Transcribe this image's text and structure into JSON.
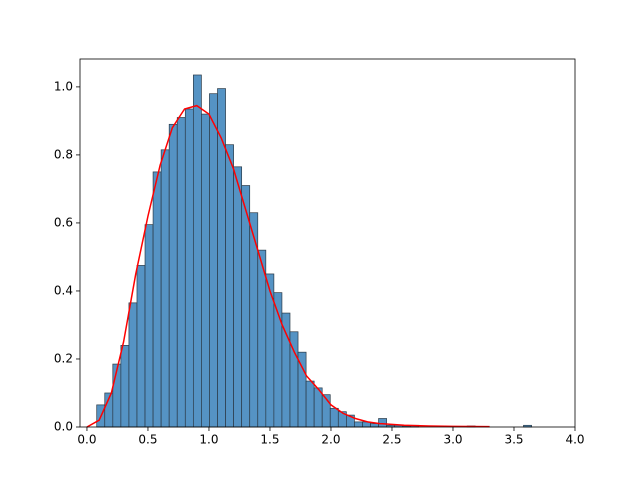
{
  "chart_data": {
    "type": "histogram",
    "bins": [
      0.08,
      0.146,
      0.212,
      0.278,
      0.344,
      0.41,
      0.476,
      0.542,
      0.608,
      0.674,
      0.74,
      0.806,
      0.872,
      0.938,
      1.004,
      1.07,
      1.136,
      1.202,
      1.268,
      1.334,
      1.4,
      1.466,
      1.532,
      1.598,
      1.664,
      1.73,
      1.796,
      1.862,
      1.928,
      1.994,
      2.06,
      2.126,
      2.192,
      2.258,
      2.324,
      2.39,
      2.456,
      2.522,
      2.588,
      2.654,
      2.72,
      2.786,
      2.852,
      2.918,
      2.984,
      3.05,
      3.116,
      3.182,
      3.248,
      3.314,
      3.38,
      3.446,
      3.512,
      3.578,
      3.644
    ],
    "values": [
      0.065,
      0.1,
      0.185,
      0.24,
      0.365,
      0.475,
      0.595,
      0.75,
      0.815,
      0.89,
      0.91,
      0.935,
      1.035,
      0.92,
      0.98,
      0.995,
      0.83,
      0.765,
      0.71,
      0.63,
      0.52,
      0.45,
      0.395,
      0.335,
      0.28,
      0.22,
      0.135,
      0.115,
      0.095,
      0.055,
      0.045,
      0.035,
      0.015,
      0.015,
      0.01,
      0.025,
      0.005,
      0.005,
      0.003,
      0.005,
      0,
      0,
      0,
      0,
      0,
      0,
      0.003,
      0,
      0,
      0,
      0,
      0,
      0,
      0.005
    ],
    "color": "#5593c4",
    "edgecolor": "#2b3a47",
    "kde": {
      "color": "#ff0000",
      "x": [
        0,
        0.1,
        0.2,
        0.3,
        0.4,
        0.5,
        0.6,
        0.7,
        0.8,
        0.9,
        1.0,
        1.1,
        1.2,
        1.3,
        1.4,
        1.5,
        1.6,
        1.7,
        1.8,
        1.9,
        2.0,
        2.1,
        2.2,
        2.3,
        2.4,
        2.6,
        2.8,
        3.0,
        3.3
      ],
      "values": [
        0,
        0.02,
        0.1,
        0.25,
        0.45,
        0.62,
        0.77,
        0.88,
        0.935,
        0.945,
        0.92,
        0.85,
        0.76,
        0.64,
        0.52,
        0.4,
        0.3,
        0.22,
        0.15,
        0.11,
        0.065,
        0.04,
        0.025,
        0.015,
        0.01,
        0.005,
        0.003,
        0.002,
        0.001
      ]
    },
    "xlim": [
      -0.057,
      4.0
    ],
    "ylim": [
      0,
      1.082
    ],
    "xticks": [
      {
        "value": 0,
        "label": "0.0"
      },
      {
        "value": 0.5,
        "label": "0.5"
      },
      {
        "value": 1,
        "label": "1.0"
      },
      {
        "value": 1.5,
        "label": "1.5"
      },
      {
        "value": 2,
        "label": "2.0"
      },
      {
        "value": 2.5,
        "label": "2.5"
      },
      {
        "value": 3,
        "label": "3.0"
      },
      {
        "value": 3.5,
        "label": "3.5"
      },
      {
        "value": 4,
        "label": "4.0"
      }
    ],
    "yticks": [
      {
        "value": 0,
        "label": "0.0"
      },
      {
        "value": 0.2,
        "label": "0.2"
      },
      {
        "value": 0.4,
        "label": "0.4"
      },
      {
        "value": 0.6,
        "label": "0.6"
      },
      {
        "value": 0.8,
        "label": "0.8"
      },
      {
        "value": 1,
        "label": "1.0"
      }
    ]
  }
}
